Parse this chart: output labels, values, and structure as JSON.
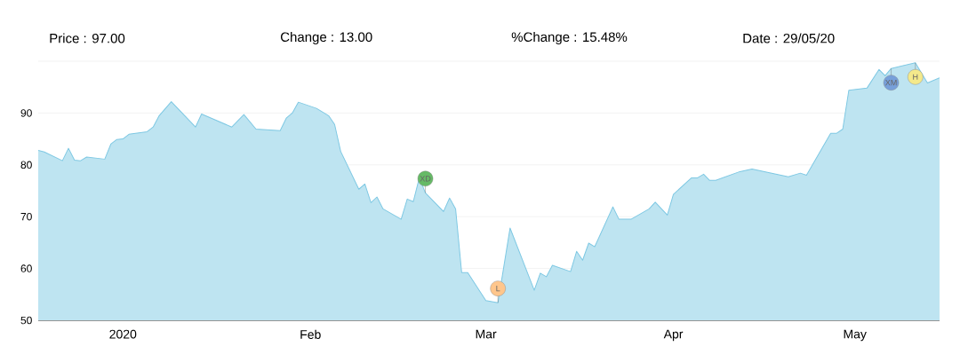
{
  "chart_data": {
    "type": "area",
    "annotations": [
      "Price : 97.00",
      "Change : 13.00",
      "%Change : 15.48%",
      "Date : 29/05/20",
      {
        "text": "XD",
        "x": "2020-02-20",
        "y": 74.6
      },
      {
        "text": "L",
        "x": "2020-03-03",
        "y": 53.4
      },
      {
        "text": "XM",
        "x": "2020-05-07",
        "y": 98.6
      },
      {
        "text": "H",
        "x": "2020-05-11",
        "y": 99.7
      }
    ],
    "x": [
      "2019-12-18",
      "2019-12-19",
      "2019-12-22",
      "2019-12-23",
      "2019-12-24",
      "2019-12-25",
      "2019-12-26",
      "2019-12-29",
      "2019-12-30",
      "2019-12-31",
      "2020-01-01",
      "2020-01-02",
      "2020-01-05",
      "2020-01-06",
      "2020-01-07",
      "2020-01-09",
      "2020-01-13",
      "2020-01-14",
      "2020-01-19",
      "2020-01-21",
      "2020-01-23",
      "2020-01-27",
      "2020-01-28",
      "2020-01-29",
      "2020-01-30",
      "2020-02-02",
      "2020-02-04",
      "2020-02-05",
      "2020-02-06",
      "2020-02-09",
      "2020-02-10",
      "2020-02-11",
      "2020-02-12",
      "2020-02-13",
      "2020-02-16",
      "2020-02-17",
      "2020-02-18",
      "2020-02-19",
      "2020-02-20",
      "2020-02-23",
      "2020-02-24",
      "2020-02-25",
      "2020-02-26",
      "2020-02-27",
      "2020-03-01",
      "2020-03-03",
      "2020-03-05",
      "2020-03-09",
      "2020-03-10",
      "2020-03-11",
      "2020-03-12",
      "2020-03-15",
      "2020-03-16",
      "2020-03-17",
      "2020-03-18",
      "2020-03-19",
      "2020-03-22",
      "2020-03-23",
      "2020-03-25",
      "2020-03-28",
      "2020-03-29",
      "2020-03-31",
      "2020-04-01",
      "2020-04-04",
      "2020-04-05",
      "2020-04-06",
      "2020-04-07",
      "2020-04-08",
      "2020-04-12",
      "2020-04-14",
      "2020-04-20",
      "2020-04-22",
      "2020-04-23",
      "2020-04-27",
      "2020-04-28",
      "2020-04-29",
      "2020-04-30",
      "2020-05-03",
      "2020-05-05",
      "2020-05-06",
      "2020-05-07",
      "2020-05-11",
      "2020-05-12",
      "2020-05-13",
      "2020-05-15"
    ],
    "series": [
      {
        "color": "#7ec8e3",
        "values": [
          82.8,
          82.5,
          80.8,
          83.2,
          80.9,
          80.8,
          81.5,
          81.1,
          84.0,
          84.9,
          85.0,
          85.9,
          86.4,
          87.3,
          89.5,
          92.2,
          87.3,
          89.8,
          87.3,
          89.7,
          86.9,
          86.6,
          89.0,
          90.0,
          92.1,
          90.9,
          89.5,
          87.8,
          82.6,
          75.3,
          76.3,
          72.7,
          73.8,
          71.5,
          69.5,
          73.4,
          72.9,
          77.5,
          74.6,
          71.0,
          73.6,
          71.5,
          59.2,
          59.2,
          53.8,
          53.4,
          67.8,
          55.8,
          59.1,
          58.4,
          60.6,
          59.4,
          63.3,
          61.6,
          64.9,
          64.2,
          71.9,
          69.5,
          69.5,
          71.5,
          72.8,
          70.3,
          74.3,
          77.5,
          77.5,
          78.2,
          77.0,
          77.0,
          78.7,
          79.2,
          77.7,
          78.4,
          78.0,
          86.1,
          86.1,
          86.9,
          94.4,
          94.8,
          98.4,
          97.2,
          98.6,
          99.7,
          null,
          95.8,
          96.8
        ]
      }
    ],
    "xlim": [
      "2019-12-18",
      "2020-05-15"
    ],
    "xticks": [
      {
        "value": "2020-01-01",
        "label": "2020"
      },
      {
        "value": "2020-02-01",
        "label": "Feb"
      },
      {
        "value": "2020-03-01",
        "label": "Mar"
      },
      {
        "value": "2020-04-01",
        "label": "Apr"
      },
      {
        "value": "2020-05-01",
        "label": "May"
      }
    ],
    "ylim": [
      50,
      100
    ],
    "yticks": [
      50,
      60,
      70,
      80,
      90,
      {
        "value": 100,
        "label": null
      }
    ],
    "grid": "y"
  }
}
